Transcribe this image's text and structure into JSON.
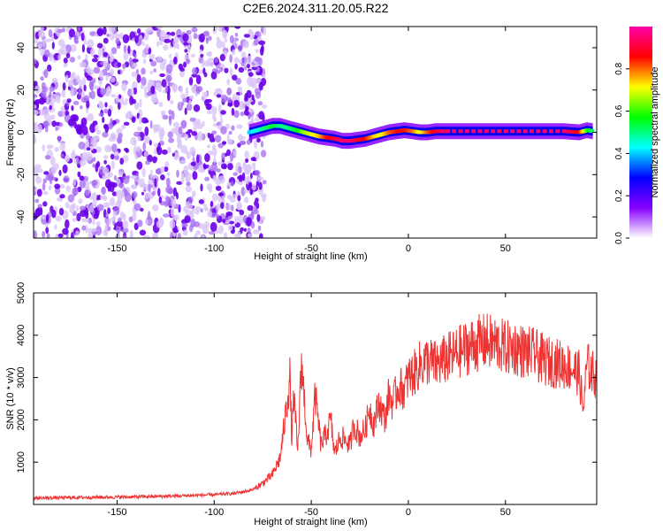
{
  "title": "C2E6.2024.311.20.05.R22",
  "chart_data": [
    {
      "type": "heatmap",
      "xlabel": "Height of straight line (km)",
      "ylabel": "Frequency (Hz)",
      "xlim": [
        -193,
        97
      ],
      "ylim": [
        -50,
        50
      ],
      "xticks": [
        -150,
        -100,
        -50,
        0,
        50
      ],
      "yticks": [
        -40,
        -20,
        0,
        20,
        40
      ],
      "noise_region_x": [
        -193,
        -80
      ],
      "ridge": {
        "x": [
          -82,
          -78,
          -74,
          -70,
          -66,
          -62,
          -58,
          -54,
          -50,
          -46,
          -42,
          -38,
          -34,
          -30,
          -26,
          -22,
          -18,
          -14,
          -10,
          -6,
          -2,
          2,
          6,
          10,
          14,
          20,
          40,
          60,
          80,
          88,
          92,
          95
        ],
        "y": [
          0,
          1,
          2,
          3,
          3,
          2,
          1,
          0,
          -1,
          -2,
          -2.5,
          -3,
          -4,
          -4,
          -3.5,
          -3,
          -2,
          -1,
          0,
          0.5,
          1,
          0.5,
          0,
          0,
          0.5,
          0.5,
          0.5,
          0.5,
          0.5,
          0,
          1,
          0.5
        ],
        "amplitude": [
          0.4,
          0.45,
          0.5,
          0.55,
          0.5,
          0.5,
          0.55,
          0.65,
          0.7,
          0.75,
          0.85,
          0.9,
          0.95,
          0.95,
          0.9,
          0.85,
          0.75,
          0.7,
          0.8,
          0.85,
          0.85,
          0.8,
          0.7,
          0.8,
          0.9,
          0.95,
          0.95,
          0.95,
          0.95,
          0.85,
          0.6,
          0.5
        ]
      },
      "colorbar": {
        "label": "Normalized spectral amplitude",
        "ticks": [
          0.0,
          0.2,
          0.4,
          0.6,
          0.8
        ],
        "range": [
          0,
          1
        ],
        "colormap": [
          "#ffffff",
          "#8800ff",
          "#0000ff",
          "#00ffff",
          "#00ff00",
          "#ffff00",
          "#ff0000",
          "#ff00aa"
        ]
      }
    },
    {
      "type": "line",
      "xlabel": "Height of straight line (km)",
      "ylabel": "SNR (10 * v/v)",
      "xlim": [
        -193,
        97
      ],
      "ylim": [
        0,
        5000
      ],
      "xticks": [
        -150,
        -100,
        -50,
        0,
        50
      ],
      "yticks": [
        1000,
        2000,
        3000,
        4000,
        5000
      ],
      "color": "#ee3333",
      "series": [
        {
          "x": [
            -193,
            -180,
            -160,
            -140,
            -120,
            -100,
            -90,
            -85,
            -80,
            -75,
            -70,
            -66,
            -63,
            -61,
            -60,
            -59,
            -57,
            -55,
            -52,
            -50,
            -48,
            -45,
            -42,
            -40,
            -38,
            -35,
            -32,
            -30,
            -28,
            -25,
            -22,
            -20,
            -18,
            -15,
            -12,
            -10,
            -8,
            -5,
            -2,
            0,
            3,
            6,
            10,
            14,
            18,
            22,
            26,
            30,
            35,
            40,
            45,
            50,
            55,
            60,
            65,
            70,
            75,
            80,
            85,
            88,
            90,
            92,
            95,
            97
          ],
          "y": [
            150,
            160,
            170,
            180,
            200,
            230,
            260,
            300,
            350,
            500,
            700,
            1100,
            2200,
            3000,
            1500,
            2600,
            1200,
            3400,
            1500,
            1300,
            2600,
            1400,
            1700,
            2000,
            1200,
            1600,
            1500,
            1400,
            1900,
            1600,
            1800,
            2300,
            1900,
            2400,
            2000,
            2600,
            2400,
            2800,
            2700,
            3000,
            3100,
            3300,
            3400,
            3300,
            3400,
            3500,
            3600,
            3700,
            3800,
            3850,
            3800,
            3700,
            3700,
            3600,
            3550,
            3400,
            3350,
            3300,
            3200,
            3100,
            2200,
            3300,
            3100,
            3000
          ]
        }
      ]
    }
  ]
}
